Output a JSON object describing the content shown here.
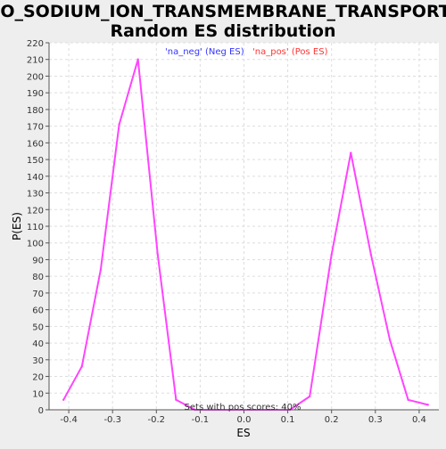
{
  "chart_data": {
    "type": "line",
    "title_line1": "GO_SODIUM_ION_TRANSMEMBRANE_TRANSPORT:",
    "title_line2": "Random ES distribution",
    "xlabel": "ES",
    "ylabel": "P(ES)",
    "xlim": [
      -0.445,
      0.445
    ],
    "ylim": [
      0,
      220
    ],
    "x_ticks": [
      {
        "value": -0.4,
        "label": "-0.4"
      },
      {
        "value": -0.3,
        "label": "-0.3"
      },
      {
        "value": -0.2,
        "label": "-0.2"
      },
      {
        "value": -0.1,
        "label": "-0.1"
      },
      {
        "value": 0.0,
        "label": "0.0"
      },
      {
        "value": 0.1,
        "label": "0.1"
      },
      {
        "value": 0.2,
        "label": "0.2"
      },
      {
        "value": 0.3,
        "label": "0.3"
      },
      {
        "value": 0.4,
        "label": "0.4"
      }
    ],
    "y_ticks": [
      {
        "value": 0,
        "label": "0"
      },
      {
        "value": 10,
        "label": "10"
      },
      {
        "value": 20,
        "label": "20"
      },
      {
        "value": 30,
        "label": "30"
      },
      {
        "value": 40,
        "label": "40"
      },
      {
        "value": 50,
        "label": "50"
      },
      {
        "value": 60,
        "label": "60"
      },
      {
        "value": 70,
        "label": "70"
      },
      {
        "value": 80,
        "label": "80"
      },
      {
        "value": 90,
        "label": "90"
      },
      {
        "value": 100,
        "label": "100"
      },
      {
        "value": 110,
        "label": "110"
      },
      {
        "value": 120,
        "label": "120"
      },
      {
        "value": 130,
        "label": "130"
      },
      {
        "value": 140,
        "label": "140"
      },
      {
        "value": 150,
        "label": "150"
      },
      {
        "value": 160,
        "label": "160"
      },
      {
        "value": 170,
        "label": "170"
      },
      {
        "value": 180,
        "label": "180"
      },
      {
        "value": 190,
        "label": "190"
      },
      {
        "value": 200,
        "label": "200"
      },
      {
        "value": 210,
        "label": "210"
      },
      {
        "value": 220,
        "label": "220"
      }
    ],
    "grid": true,
    "legend": [
      {
        "label": "'na_neg' (Neg ES)",
        "color": "#3333ff"
      },
      {
        "label": "'na_pos' (Pos ES)",
        "color": "#ff3333"
      }
    ],
    "annotation": "Sets with pos scores: 40%",
    "series": [
      {
        "color": "#ff44ff",
        "points": [
          {
            "x": -0.412,
            "y": 6
          },
          {
            "x": -0.37,
            "y": 26
          },
          {
            "x": -0.327,
            "y": 84
          },
          {
            "x": -0.285,
            "y": 171
          },
          {
            "x": -0.242,
            "y": 210
          },
          {
            "x": -0.197,
            "y": 93
          },
          {
            "x": -0.155,
            "y": 6
          },
          {
            "x": -0.112,
            "y": 0
          },
          {
            "x": -0.07,
            "y": 0
          },
          {
            "x": -0.025,
            "y": 0
          },
          {
            "x": 0.017,
            "y": 0
          },
          {
            "x": 0.06,
            "y": 0
          },
          {
            "x": 0.105,
            "y": 0
          },
          {
            "x": 0.15,
            "y": 8
          },
          {
            "x": 0.2,
            "y": 93
          },
          {
            "x": 0.244,
            "y": 154
          },
          {
            "x": 0.29,
            "y": 93
          },
          {
            "x": 0.333,
            "y": 42
          },
          {
            "x": 0.375,
            "y": 6
          },
          {
            "x": 0.42,
            "y": 3
          }
        ]
      }
    ]
  }
}
